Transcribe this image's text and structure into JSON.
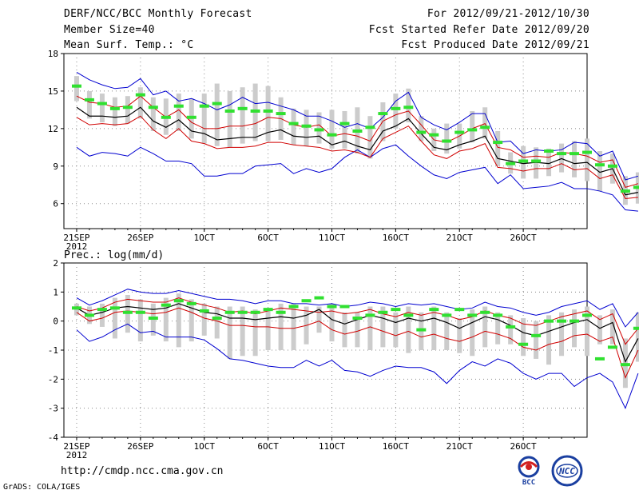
{
  "header": {
    "line1_left": "DERF/NCC/BCC Monthly Forecast",
    "line2_left": "Member Size=40",
    "line3_left": "Mean Surf. Temp.: °C",
    "line1_right": "For 2012/09/21-2012/10/30",
    "line2_right": "Fcst Started Refer Date 2012/09/20",
    "line3_right": "Fcst Produced Date 2012/09/21"
  },
  "footer": {
    "url": "http://cmdp.ncc.cma.gov.cn",
    "credit": "GrADS: COLA/IGES",
    "logo_bcc": "BCC",
    "logo_ncc": "NCC"
  },
  "colors": {
    "mean": "#000000",
    "envelope": "#0000d0",
    "spread": "#d00000",
    "box": "#cccccc",
    "obs": "#30e030",
    "grid": "#888888"
  },
  "chart_data": [
    {
      "type": "line",
      "title": "Mean Surf. Temp.: °C",
      "x_tick_labels": [
        "21SEP",
        "26SEP",
        "1OCT",
        "6OCT",
        "11OCT",
        "16OCT",
        "21OCT",
        "26OCT"
      ],
      "x_tick_days": [
        1,
        6,
        11,
        16,
        21,
        26,
        31,
        36
      ],
      "year_label": "2012",
      "xlim": [
        0,
        41
      ],
      "ylim": [
        4,
        18
      ],
      "yticks": [
        6,
        9,
        12,
        15,
        18
      ],
      "series": [
        {
          "name": "upper",
          "values": [
            16.5,
            15.9,
            15.5,
            15.2,
            15.3,
            16.0,
            14.7,
            15.0,
            14.2,
            14.4,
            14.0,
            13.5,
            13.9,
            14.5,
            14.0,
            14.1,
            13.8,
            13.5,
            13.0,
            13.0,
            12.6,
            12.1,
            12.4,
            12.0,
            12.9,
            14.2,
            14.9,
            12.9,
            12.3,
            11.9,
            12.5,
            13.2,
            13.2,
            10.9,
            11.0,
            10.0,
            10.3,
            10.2,
            10.3,
            10.9,
            10.8,
            9.8,
            10.2,
            7.9,
            8.2
          ]
        },
        {
          "name": "upper_spread",
          "values": [
            14.6,
            14.1,
            14.0,
            13.7,
            13.8,
            14.6,
            13.7,
            12.9,
            13.5,
            12.5,
            12.0,
            12.0,
            12.2,
            12.2,
            12.4,
            12.9,
            12.8,
            12.3,
            12.1,
            12.3,
            11.4,
            11.6,
            11.4,
            11.0,
            12.6,
            13.1,
            13.4,
            12.3,
            11.1,
            10.9,
            11.4,
            12.0,
            12.4,
            10.5,
            10.3,
            9.7,
            9.8,
            9.7,
            10.1,
            10.0,
            9.8,
            9.3,
            9.5,
            7.3,
            7.6
          ]
        },
        {
          "name": "mean",
          "values": [
            13.7,
            13.0,
            13.0,
            12.9,
            13.0,
            13.7,
            12.6,
            12.1,
            12.7,
            11.8,
            11.6,
            11.1,
            11.2,
            11.3,
            11.3,
            11.7,
            11.9,
            11.4,
            11.3,
            11.4,
            10.7,
            11.0,
            10.6,
            10.3,
            11.8,
            12.2,
            12.8,
            11.6,
            10.5,
            10.3,
            10.7,
            11.0,
            11.4,
            9.6,
            9.4,
            9.2,
            9.3,
            9.2,
            9.6,
            9.2,
            9.3,
            8.5,
            8.8,
            6.7,
            6.9
          ]
        },
        {
          "name": "lower_spread",
          "values": [
            12.9,
            12.3,
            12.4,
            12.3,
            12.4,
            13.0,
            11.9,
            11.2,
            12.0,
            11.0,
            10.8,
            10.4,
            10.5,
            10.5,
            10.6,
            10.9,
            10.9,
            10.7,
            10.6,
            10.5,
            10.2,
            10.3,
            10.1,
            9.7,
            11.2,
            11.7,
            12.2,
            11.0,
            9.9,
            9.6,
            10.2,
            10.4,
            10.8,
            8.9,
            8.8,
            8.6,
            8.8,
            8.8,
            9.2,
            8.7,
            8.8,
            8.0,
            8.3,
            6.4,
            6.5
          ]
        },
        {
          "name": "lower",
          "values": [
            10.5,
            9.8,
            10.1,
            10.0,
            9.8,
            10.5,
            10.0,
            9.4,
            9.4,
            9.2,
            8.2,
            8.2,
            8.4,
            8.4,
            9.0,
            9.1,
            9.2,
            8.4,
            8.8,
            8.5,
            8.8,
            9.7,
            10.3,
            9.7,
            10.4,
            10.7,
            9.8,
            9.0,
            8.3,
            8.0,
            8.5,
            8.7,
            8.9,
            7.6,
            8.3,
            7.2,
            7.3,
            7.4,
            7.7,
            7.2,
            7.2,
            7.0,
            6.7,
            5.5,
            5.4
          ]
        },
        {
          "name": "box_max",
          "values": [
            16.2,
            15.0,
            14.8,
            14.5,
            14.6,
            15.3,
            14.5,
            14.4,
            14.8,
            14.4,
            14.8,
            15.6,
            15.0,
            15.3,
            15.6,
            15.4,
            14.5,
            13.6,
            13.5,
            13.3,
            13.5,
            13.4,
            13.7,
            13.0,
            14.1,
            14.8,
            15.2,
            13.0,
            12.0,
            12.4,
            12.4,
            13.4,
            13.7,
            11.8,
            10.1,
            10.6,
            10.5,
            10.4,
            10.8,
            11.0,
            11.2,
            10.2,
            10.0,
            8.2,
            8.5
          ]
        },
        {
          "name": "box_min",
          "values": [
            14.2,
            12.8,
            12.5,
            12.2,
            12.4,
            12.8,
            11.8,
            11.5,
            11.8,
            11.2,
            10.8,
            10.6,
            10.5,
            10.8,
            11.0,
            11.0,
            11.1,
            10.7,
            10.6,
            10.8,
            10.4,
            10.4,
            10.0,
            9.6,
            11.0,
            12.0,
            12.5,
            11.0,
            10.2,
            10.0,
            10.4,
            10.9,
            11.2,
            9.0,
            8.4,
            8.0,
            8.0,
            8.2,
            8.5,
            8.1,
            7.8,
            7.0,
            7.6,
            5.9,
            6.0
          ]
        },
        {
          "name": "obs",
          "values": [
            15.4,
            14.3,
            14.0,
            13.6,
            13.7,
            14.7,
            13.7,
            12.9,
            13.8,
            12.9,
            13.8,
            14.0,
            13.4,
            13.6,
            13.4,
            13.4,
            13.2,
            12.4,
            12.2,
            11.9,
            11.5,
            12.4,
            11.8,
            12.1,
            13.2,
            13.6,
            13.7,
            11.7,
            11.5,
            11.0,
            11.7,
            11.9,
            12.1,
            10.9,
            9.2,
            9.4,
            9.4,
            10.2,
            10.0,
            10.0,
            10.1,
            9.1,
            9.0,
            7.0,
            7.3
          ]
        }
      ]
    },
    {
      "type": "line",
      "title": "Prec.: log(mm/d)",
      "x_tick_labels": [
        "21SEP",
        "26SEP",
        "1OCT",
        "6OCT",
        "11OCT",
        "16OCT",
        "21OCT",
        "26OCT"
      ],
      "x_tick_days": [
        1,
        6,
        11,
        16,
        21,
        26,
        31,
        36
      ],
      "year_label": "2012",
      "xlim": [
        0,
        41
      ],
      "ylim": [
        -4,
        2
      ],
      "yticks": [
        -4,
        -3,
        -2,
        -1,
        0,
        1,
        2
      ],
      "series": [
        {
          "name": "upper",
          "values": [
            0.8,
            0.55,
            0.7,
            0.9,
            1.1,
            1.0,
            0.95,
            0.95,
            1.05,
            0.95,
            0.85,
            0.75,
            0.75,
            0.7,
            0.6,
            0.7,
            0.7,
            0.6,
            0.6,
            0.55,
            0.6,
            0.5,
            0.55,
            0.65,
            0.6,
            0.5,
            0.6,
            0.55,
            0.6,
            0.5,
            0.4,
            0.45,
            0.65,
            0.5,
            0.45,
            0.3,
            0.2,
            0.3,
            0.5,
            0.6,
            0.7,
            0.4,
            0.6,
            -0.2,
            0.3
          ]
        },
        {
          "name": "upper_spread",
          "values": [
            0.5,
            0.35,
            0.45,
            0.65,
            0.75,
            0.7,
            0.65,
            0.65,
            0.8,
            0.65,
            0.55,
            0.45,
            0.3,
            0.35,
            0.25,
            0.35,
            0.45,
            0.4,
            0.35,
            0.3,
            0.35,
            0.25,
            0.3,
            0.4,
            0.25,
            0.15,
            0.3,
            0.2,
            0.3,
            0.2,
            0.05,
            0.15,
            0.35,
            0.2,
            0.1,
            -0.1,
            -0.15,
            0.0,
            0.15,
            0.25,
            0.35,
            0.05,
            0.25,
            -0.8,
            -0.25
          ]
        },
        {
          "name": "mean",
          "values": [
            0.45,
            0.2,
            0.3,
            0.45,
            0.5,
            0.45,
            0.4,
            0.45,
            0.6,
            0.45,
            0.3,
            0.25,
            0.1,
            0.1,
            0.05,
            0.1,
            0.15,
            0.1,
            0.2,
            0.4,
            0.05,
            -0.1,
            0.05,
            0.2,
            0.1,
            -0.05,
            0.1,
            0.0,
            0.1,
            -0.05,
            -0.25,
            -0.05,
            0.15,
            0.05,
            -0.15,
            -0.4,
            -0.5,
            -0.35,
            -0.2,
            -0.05,
            0.05,
            -0.25,
            -0.05,
            -1.4,
            -0.6
          ]
        },
        {
          "name": "lower_spread",
          "values": [
            0.3,
            0.0,
            0.1,
            0.3,
            0.35,
            0.3,
            0.25,
            0.3,
            0.45,
            0.3,
            0.1,
            0.0,
            -0.15,
            -0.15,
            -0.2,
            -0.2,
            -0.25,
            -0.25,
            -0.15,
            0.0,
            -0.3,
            -0.45,
            -0.35,
            -0.2,
            -0.35,
            -0.5,
            -0.35,
            -0.55,
            -0.45,
            -0.6,
            -0.7,
            -0.55,
            -0.35,
            -0.45,
            -0.6,
            -0.9,
            -1.0,
            -0.8,
            -0.7,
            -0.5,
            -0.45,
            -0.7,
            -0.55,
            -1.95,
            -1.0
          ]
        },
        {
          "name": "lower",
          "values": [
            -0.3,
            -0.7,
            -0.55,
            -0.3,
            -0.1,
            -0.4,
            -0.35,
            -0.55,
            -0.55,
            -0.55,
            -0.65,
            -0.95,
            -1.3,
            -1.35,
            -1.45,
            -1.55,
            -1.6,
            -1.6,
            -1.35,
            -1.55,
            -1.35,
            -1.7,
            -1.75,
            -1.9,
            -1.7,
            -1.55,
            -1.6,
            -1.6,
            -1.75,
            -2.15,
            -1.7,
            -1.4,
            -1.55,
            -1.3,
            -1.45,
            -1.8,
            -2.0,
            -1.8,
            -1.8,
            -2.25,
            -1.95,
            -1.8,
            -2.1,
            -3.0,
            -1.8
          ]
        },
        {
          "name": "box_max",
          "values": [
            0.6,
            0.5,
            0.6,
            0.8,
            0.9,
            0.75,
            0.6,
            0.8,
            0.95,
            0.75,
            0.6,
            0.5,
            0.5,
            0.5,
            0.4,
            0.4,
            0.6,
            0.6,
            0.5,
            0.5,
            0.6,
            0.3,
            0.3,
            0.5,
            0.5,
            0.3,
            0.5,
            0.3,
            0.5,
            0.3,
            0.1,
            0.4,
            0.5,
            0.3,
            0.2,
            0.1,
            0.0,
            0.2,
            0.3,
            0.4,
            0.5,
            0.2,
            0.4,
            -0.6,
            0.3
          ]
        },
        {
          "name": "box_min",
          "values": [
            0.2,
            -0.1,
            -0.2,
            -0.6,
            -0.4,
            -0.7,
            -0.5,
            -0.7,
            -0.9,
            -0.7,
            -0.5,
            -0.6,
            -1.3,
            -1.2,
            -1.2,
            -1.0,
            -1.0,
            -1.0,
            -0.8,
            -0.4,
            -0.7,
            -0.9,
            -0.9,
            -1.0,
            -0.9,
            -0.9,
            -1.1,
            -1.0,
            -1.0,
            -1.0,
            -1.1,
            -1.2,
            -0.9,
            -0.8,
            -0.8,
            -1.2,
            -1.3,
            -1.5,
            -1.2,
            -0.9,
            -1.2,
            -0.8,
            -0.8,
            -2.3,
            -1.4
          ]
        },
        {
          "name": "obs",
          "values": [
            0.45,
            0.2,
            0.4,
            0.45,
            0.3,
            0.3,
            0.1,
            0.55,
            0.7,
            0.6,
            0.35,
            0.1,
            0.3,
            0.3,
            0.3,
            0.4,
            0.3,
            0.5,
            0.7,
            0.8,
            0.5,
            0.5,
            0.1,
            0.2,
            0.3,
            0.4,
            0.2,
            -0.3,
            0.4,
            0.2,
            0.4,
            0.2,
            0.3,
            0.2,
            -0.2,
            -0.8,
            -0.5,
            0.0,
            0.0,
            0.0,
            0.2,
            -1.3,
            -0.9,
            -1.5,
            -0.25
          ]
        }
      ]
    }
  ]
}
